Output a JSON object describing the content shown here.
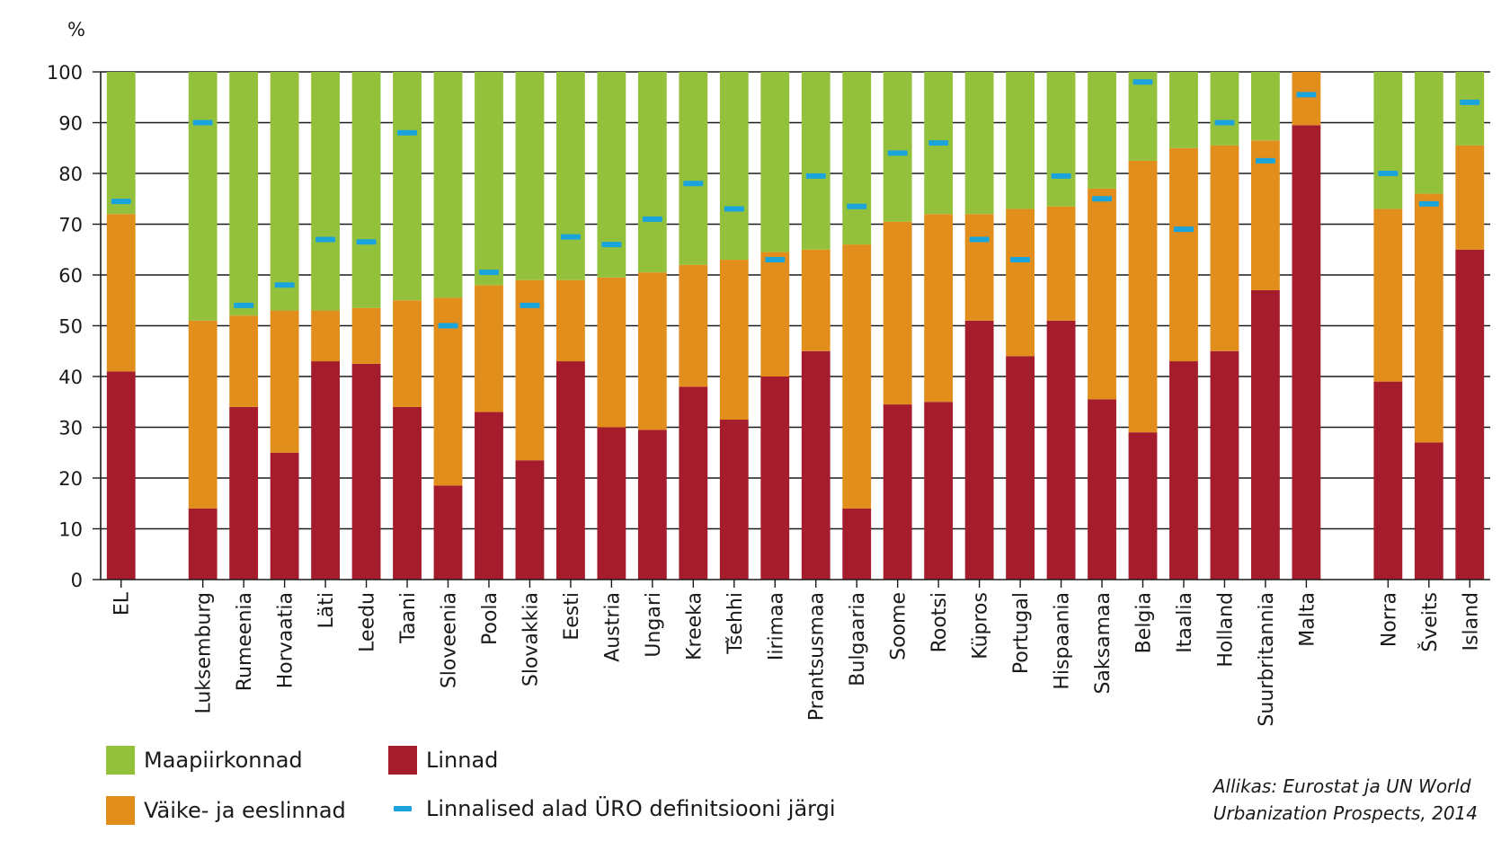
{
  "chart_data": {
    "type": "bar",
    "stacked": true,
    "ylabel": "%",
    "ylim": [
      0,
      100
    ],
    "yticks": [
      0,
      10,
      20,
      30,
      40,
      50,
      60,
      70,
      80,
      90,
      100
    ],
    "grid": true,
    "categories": [
      "EL",
      "Luksemburg",
      "Rumeenia",
      "Horvaatia",
      "Läti",
      "Leedu",
      "Taani",
      "Sloveenia",
      "Poola",
      "Slovakkia",
      "Eesti",
      "Austria",
      "Ungari",
      "Kreeka",
      "Tšehhi",
      "Iirimaa",
      "Prantsusmaa",
      "Bulgaaria",
      "Soome",
      "Rootsi",
      "Küpros",
      "Portugal",
      "Hispaania",
      "Saksamaa",
      "Belgia",
      "Itaalia",
      "Holland",
      "Suurbritannia",
      "Malta",
      "Norra",
      "Šveits",
      "Island"
    ],
    "groups": [
      [
        0,
        0
      ],
      [
        1,
        28
      ],
      [
        29,
        31
      ]
    ],
    "series": [
      {
        "name": "Linnad",
        "color": "#a51c2d",
        "values": [
          41,
          14,
          34,
          25,
          43,
          42.5,
          34,
          18.5,
          33,
          23.5,
          43,
          30,
          29.5,
          38,
          31.5,
          40,
          45,
          14,
          34.5,
          35,
          51,
          44,
          51,
          35.5,
          29,
          43,
          45,
          57,
          89.5,
          39,
          27,
          65
        ]
      },
      {
        "name": "Väike- ja eeslinnad",
        "color": "#e28e1c",
        "values": [
          31,
          37,
          18,
          28,
          10,
          11,
          21,
          37,
          25,
          35.5,
          16,
          29.5,
          31,
          24,
          31.5,
          24.5,
          20,
          52,
          36,
          37,
          21,
          29,
          22.5,
          41.5,
          53.5,
          42,
          40.5,
          29.5,
          10.5,
          34,
          49,
          20.5
        ]
      },
      {
        "name": "Maapiirkonnad",
        "color": "#94c13c",
        "values": [
          28,
          49,
          48,
          47,
          47,
          46.5,
          45,
          44.5,
          42,
          41,
          41,
          40.5,
          39.5,
          38,
          37,
          35.5,
          35,
          34,
          29.5,
          28,
          28,
          27,
          26.5,
          23,
          17.5,
          15,
          14.5,
          13.5,
          0,
          27,
          24,
          14.5
        ]
      }
    ],
    "marker_series": {
      "name": "Linnalised alad ÜRO definitsiooni järgi",
      "color": "#1ba3dc",
      "values": [
        74.5,
        90,
        54,
        58,
        67,
        66.5,
        88,
        50,
        60.5,
        54,
        67.5,
        66,
        71,
        78,
        73,
        63,
        79.5,
        73.5,
        84,
        86,
        67,
        63,
        79.5,
        75,
        98,
        69,
        90,
        82.5,
        95.5,
        80,
        74,
        94
      ]
    }
  },
  "legend": [
    {
      "label": "Maapiirkonnad",
      "color": "#94c13c",
      "icon": "square-swatch"
    },
    {
      "label": "Linnad",
      "color": "#a51c2d",
      "icon": "square-swatch"
    },
    {
      "label": "Väike- ja eeslinnad",
      "color": "#e28e1c",
      "icon": "square-swatch"
    },
    {
      "label": "Linnalised alad ÜRO definitsiooni järgi",
      "color": "#1ba3dc",
      "icon": "dash-marker"
    }
  ],
  "source": {
    "line1": "Allikas: Eurostat ja UN World",
    "line2": "Urbanization Prospects, 2014"
  }
}
